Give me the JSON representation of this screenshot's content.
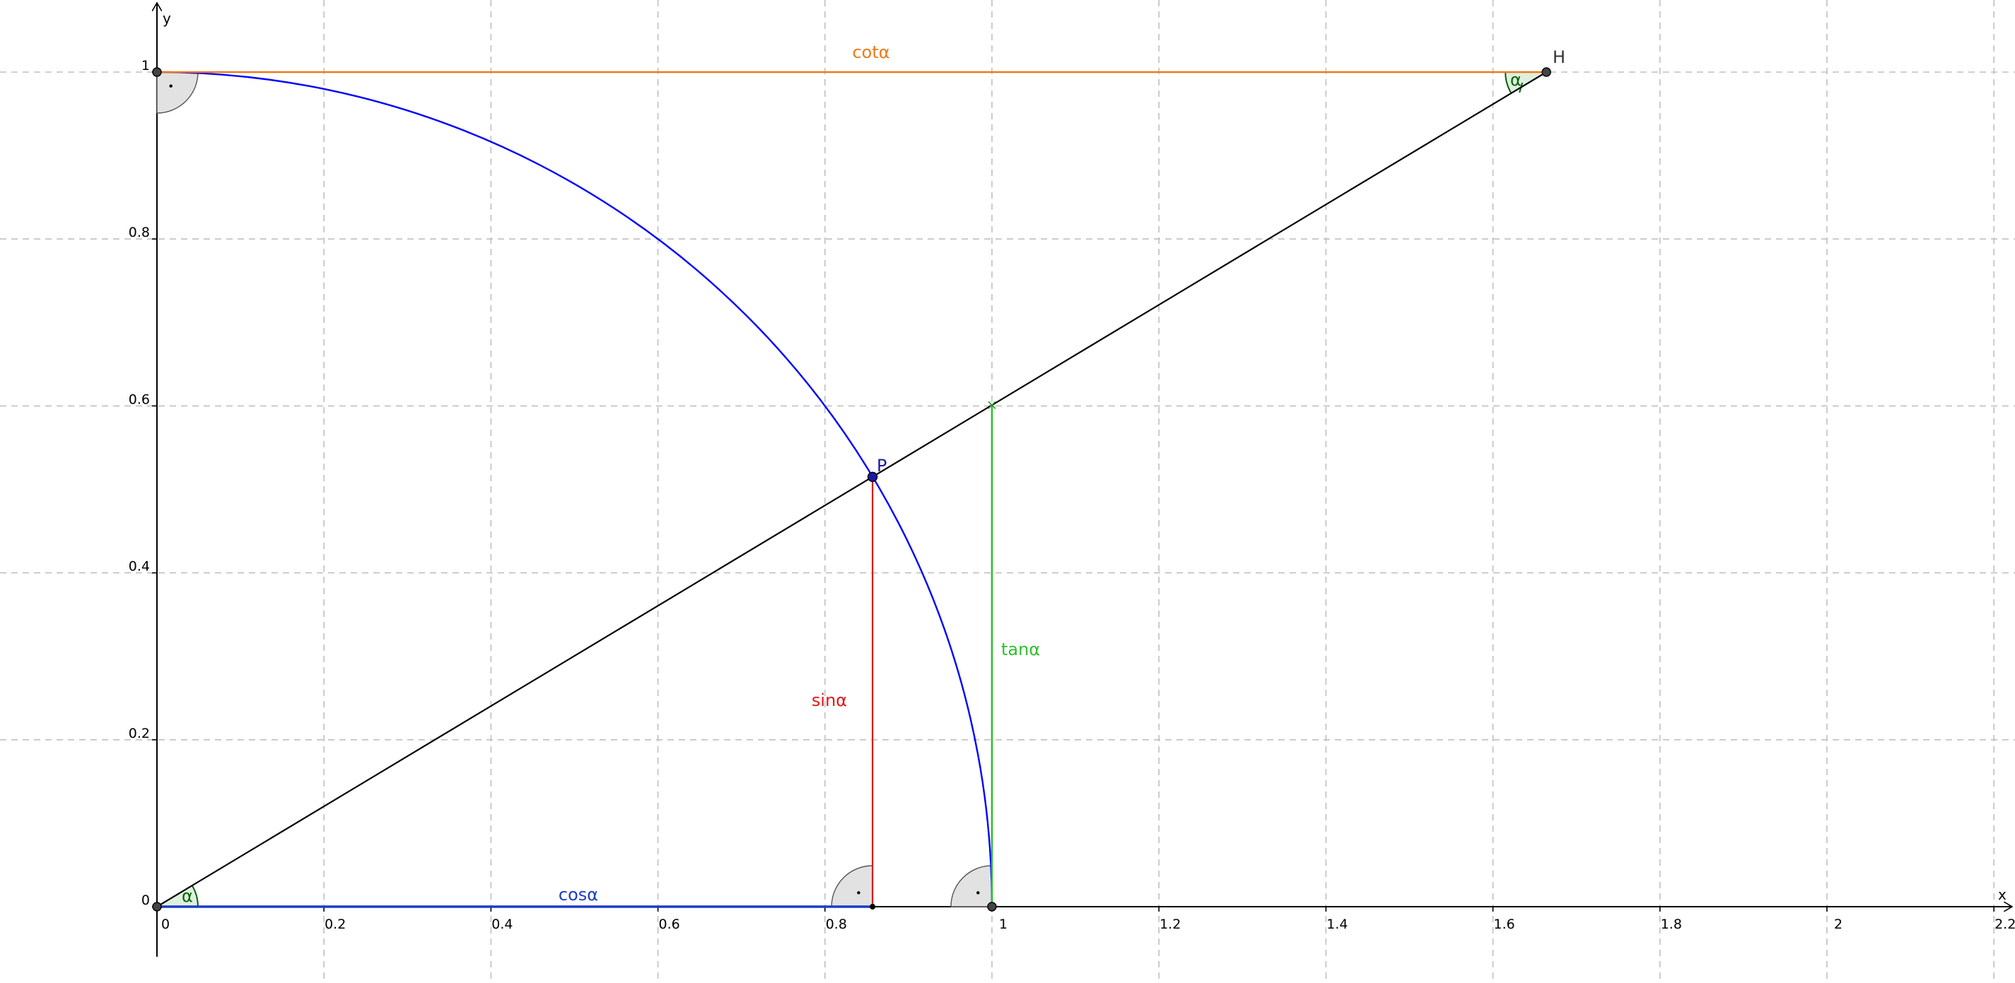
{
  "diagram": {
    "x_axis": {
      "name": "x",
      "ticks": [
        0,
        0.2,
        0.4,
        0.6,
        0.8,
        1,
        1.2,
        1.4,
        1.6,
        1.8,
        2,
        2.2
      ],
      "tick_labels": [
        "0",
        "0.2",
        "0.4",
        "0.6",
        "0.8",
        "1",
        "1.2",
        "1.4",
        "1.6",
        "1.8",
        "2",
        "2.2"
      ],
      "range": [
        -0.004,
        2.215
      ]
    },
    "y_axis": {
      "name": "y",
      "ticks": [
        0,
        0.2,
        0.4,
        0.6,
        0.8,
        1
      ],
      "tick_labels": [
        "0",
        "0.2",
        "0.4",
        "0.6",
        "0.8",
        "1"
      ],
      "range": [
        -0.06,
        1.085
      ]
    },
    "grid": true,
    "angle_deg": 31,
    "points": {
      "origin": {
        "x": 0,
        "y": 0
      },
      "P": {
        "label": "P",
        "x": 0.857,
        "y": 0.515
      },
      "T": {
        "x": 1.0,
        "y": 0.601
      },
      "H": {
        "label": "H",
        "x": 1.664,
        "y": 1.0
      },
      "E": {
        "x": 1.0,
        "y": 0
      },
      "U": {
        "x": 0,
        "y": 1.0
      },
      "Q": {
        "x": 0.857,
        "y": 0
      }
    },
    "labels": {
      "cos": "cosα",
      "sin": "sinα",
      "tan": "tanα",
      "cot": "cotα",
      "alpha": "α",
      "alpha_at_H": "α"
    },
    "colors": {
      "arc": "#0000ff",
      "cos": "#1a3cc8",
      "sin": "#e01818",
      "tan": "#2fbf2f",
      "cot": "#f07818",
      "ray": "#000000",
      "alpha": "#006400",
      "point_P": "#1a1aa8",
      "grid": "#c0c0c0"
    }
  }
}
